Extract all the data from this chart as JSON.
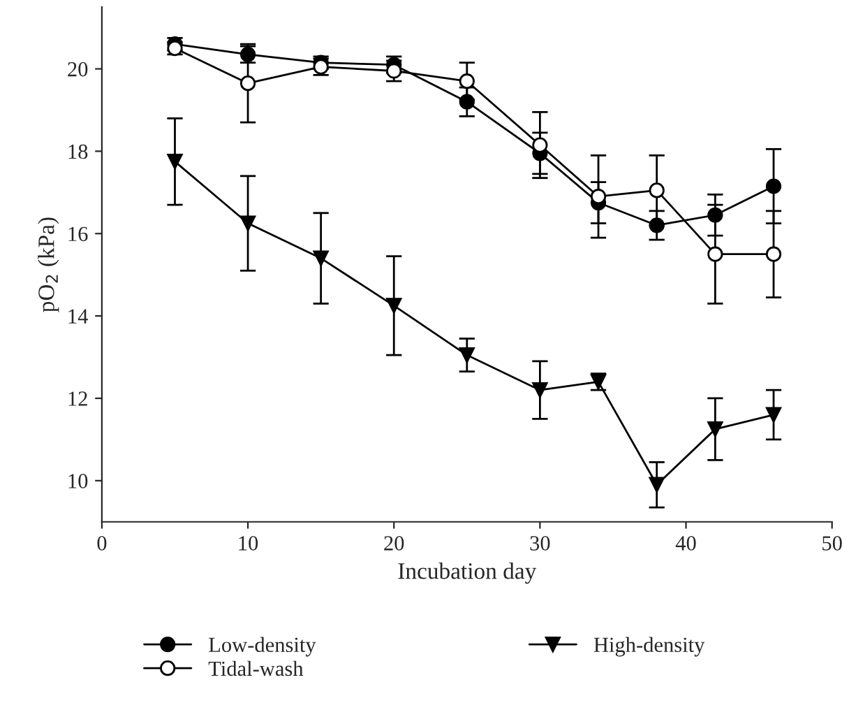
{
  "chart_data": {
    "type": "line",
    "xlabel": "Incubation day",
    "ylabel": "pO$_{2}$ (kPa)",
    "x": [
      5,
      10,
      15,
      20,
      25,
      30,
      34,
      38,
      42,
      46
    ],
    "xlim": [
      0,
      50
    ],
    "xticks": [
      0,
      10,
      20,
      30,
      40,
      50
    ],
    "ylim": [
      9,
      21.5
    ],
    "yticks": [
      10,
      12,
      14,
      16,
      18,
      20
    ],
    "grid": false,
    "legend": "bottom",
    "series": [
      {
        "name": "Low-density",
        "color": "#000000",
        "marker": "circle",
        "values": [
          20.6,
          20.35,
          20.15,
          20.1,
          19.2,
          17.95,
          16.75,
          16.2,
          16.45,
          17.15
        ],
        "errors": [
          0.15,
          0.2,
          0.15,
          0.2,
          0.35,
          0.5,
          0.5,
          0.35,
          0.5,
          0.9
        ]
      },
      {
        "name": "Tidal-wash",
        "color": "#000000",
        "marker": "circle",
        "values": [
          20.5,
          19.65,
          20.05,
          19.95,
          19.7,
          18.15,
          16.9,
          17.05,
          15.5,
          15.5
        ],
        "errors": [
          0.15,
          0.95,
          0.2,
          0.25,
          0.45,
          0.8,
          1.0,
          0.85,
          1.2,
          1.05
        ]
      },
      {
        "name": "High-density",
        "color": "#000000",
        "marker": "triangle",
        "values": [
          17.75,
          16.25,
          15.4,
          14.25,
          13.05,
          12.2,
          12.4,
          9.9,
          11.25,
          11.6
        ],
        "errors": [
          1.05,
          1.15,
          1.1,
          1.2,
          0.4,
          0.7,
          0.2,
          0.55,
          0.75,
          0.6
        ]
      }
    ]
  }
}
